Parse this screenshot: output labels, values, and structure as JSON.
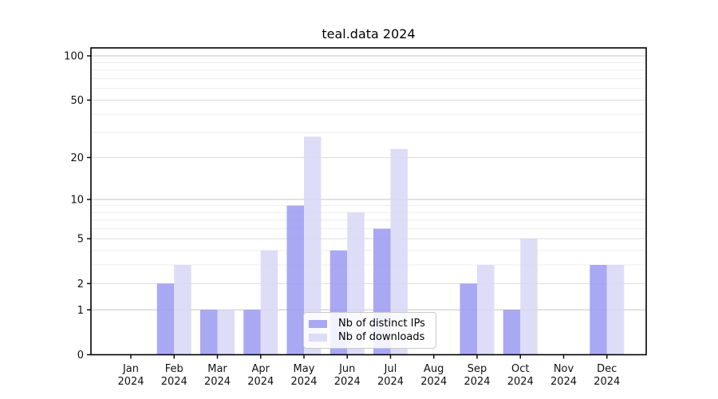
{
  "chart_data": {
    "type": "bar",
    "title": "teal.data 2024",
    "categories": [
      "Jan",
      "Feb",
      "Mar",
      "Apr",
      "May",
      "Jun",
      "Jul",
      "Aug",
      "Sep",
      "Oct",
      "Nov",
      "Dec"
    ],
    "category_year": "2024",
    "series": [
      {
        "name": "Nb of distinct IPs",
        "color": "#9c9cf1",
        "values": [
          0,
          2,
          1,
          1,
          9,
          4,
          6,
          0,
          2,
          1,
          0,
          3
        ]
      },
      {
        "name": "Nb of downloads",
        "color": "#d8d8f7",
        "values": [
          0,
          3,
          1,
          4,
          28,
          8,
          23,
          0,
          3,
          5,
          0,
          3
        ]
      }
    ],
    "xlabel": "",
    "ylabel": "",
    "yscale": "log1p",
    "yticks": [
      0,
      1,
      2,
      5,
      10,
      20,
      50,
      100
    ],
    "ylim": [
      0,
      113
    ],
    "grid": true,
    "legend_position": "lower-center",
    "colors": {
      "major_gridline": "#c6c6c6",
      "labeled_minor_gridline": "#dcdcdc",
      "minor_gridline": "#ededed",
      "axis": "#000000",
      "background": "#ffffff"
    }
  }
}
